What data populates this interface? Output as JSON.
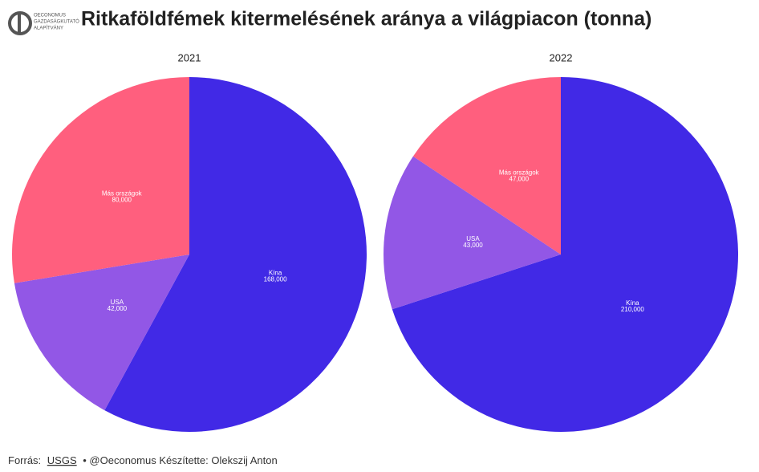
{
  "logo": {
    "lines": [
      "OECONOMUS",
      "GAZDASÁGKUTATÓ",
      "ALAPÍTVÁNY"
    ]
  },
  "title": "Ritkaföldfémek kitermelésének aránya a világpiacon (tonna)",
  "chart_data": [
    {
      "type": "pie",
      "title": "2021",
      "categories": [
        "Kína",
        "USA",
        "Más országok"
      ],
      "values": [
        168000,
        42000,
        80000
      ],
      "value_labels": [
        "168,000",
        "42,000",
        "80,000"
      ],
      "colors": [
        "#4129e6",
        "#9257e6",
        "#ff5f7e"
      ]
    },
    {
      "type": "pie",
      "title": "2022",
      "categories": [
        "Kína",
        "USA",
        "Más országok"
      ],
      "values": [
        210000,
        43000,
        47000
      ],
      "value_labels": [
        "210,000",
        "43,000",
        "47,000"
      ],
      "colors": [
        "#4129e6",
        "#9257e6",
        "#ff5f7e"
      ]
    }
  ],
  "footer": {
    "prefix": "Forrás:",
    "source": "USGS",
    "rest": "• @Oeconomus Készítette: Olekszij Anton"
  }
}
